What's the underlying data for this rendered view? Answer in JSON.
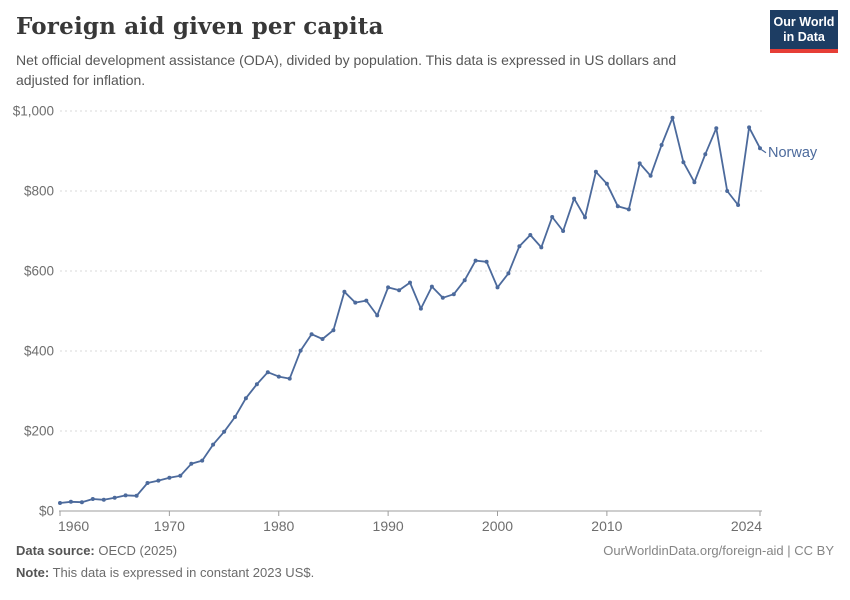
{
  "header": {
    "title": "Foreign aid given per capita",
    "subtitle": "Net official development assistance (ODA), divided by population. This data is expressed in US dollars and\nadjusted for inflation.",
    "logo_line1": "Our World",
    "logo_line2": "in Data"
  },
  "colors": {
    "line": "#4c6a9c",
    "entity_label": "#4c6a9c",
    "grid": "#dadada",
    "axis": "#9e9e9e",
    "tick_label": "#6e6e6e",
    "logo_bg": "#1d3d63",
    "logo_stripe": "#e63e36"
  },
  "chart_data": {
    "type": "line",
    "title": "Foreign aid given per capita",
    "unit": "constant 2023 US$",
    "xlabel": "",
    "ylabel": "",
    "xlim": [
      1960,
      2024
    ],
    "ylim": [
      0,
      1000
    ],
    "grid": "horizontal-dashed",
    "legend_position": "end-of-line-label",
    "x_ticks": [
      1960,
      1970,
      1980,
      1990,
      2000,
      2010,
      2024
    ],
    "y_ticks": [
      0,
      200,
      400,
      600,
      800,
      1000
    ],
    "y_tick_labels": [
      "$0",
      "$200",
      "$400",
      "$600",
      "$800",
      "$1,000"
    ],
    "series": [
      {
        "name": "Norway",
        "x": [
          1960,
          1961,
          1962,
          1963,
          1964,
          1965,
          1966,
          1967,
          1968,
          1969,
          1970,
          1971,
          1972,
          1973,
          1974,
          1975,
          1976,
          1977,
          1978,
          1979,
          1980,
          1981,
          1982,
          1983,
          1984,
          1985,
          1986,
          1987,
          1988,
          1989,
          1990,
          1991,
          1992,
          1993,
          1994,
          1995,
          1996,
          1997,
          1998,
          1999,
          2000,
          2001,
          2002,
          2003,
          2004,
          2005,
          2006,
          2007,
          2008,
          2009,
          2010,
          2011,
          2012,
          2013,
          2014,
          2015,
          2016,
          2017,
          2018,
          2019,
          2020,
          2021,
          2022,
          2023,
          2024
        ],
        "values": [
          20,
          23,
          22,
          30,
          28,
          33,
          39,
          38,
          70,
          76,
          83,
          88,
          118,
          126,
          166,
          198,
          235,
          282,
          317,
          347,
          336,
          331,
          401,
          442,
          430,
          452,
          548,
          521,
          526,
          489,
          559,
          552,
          571,
          506,
          561,
          533,
          542,
          577,
          626,
          623,
          559,
          594,
          662,
          690,
          659,
          735,
          700,
          781,
          734,
          848,
          818,
          762,
          754,
          869,
          838,
          915,
          983,
          872,
          822,
          892,
          957,
          800,
          765,
          959,
          907
        ]
      }
    ]
  },
  "footer": {
    "source_label": "Data source:",
    "source_value": "OECD (2025)",
    "note_label": "Note:",
    "note_value": "This data is expressed in constant 2023 US$.",
    "attribution": "OurWorldinData.org/foreign-aid | CC BY"
  }
}
